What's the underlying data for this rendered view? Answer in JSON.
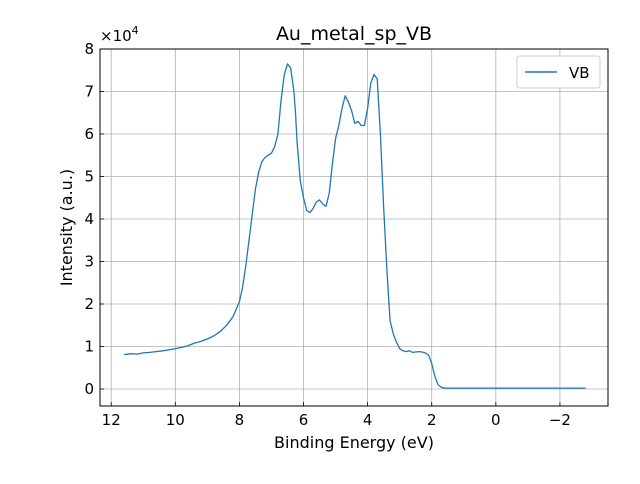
{
  "chart_data": {
    "type": "line",
    "title": "Au_metal_sp_VB",
    "xlabel": "Binding Energy (eV)",
    "ylabel": "Intensity (a.u.)",
    "y_multiplier_label": "×10",
    "y_multiplier_exponent": "4",
    "x_reversed": true,
    "xlim": [
      12.35,
      -3.5
    ],
    "ylim": [
      -0.4,
      8.0
    ],
    "x_ticks": [
      12,
      10,
      8,
      6,
      4,
      2,
      0,
      -2
    ],
    "x_tick_labels": [
      "12",
      "10",
      "8",
      "6",
      "4",
      "2",
      "0",
      "−2"
    ],
    "y_ticks": [
      0,
      1,
      2,
      3,
      4,
      5,
      6,
      7,
      8
    ],
    "y_tick_labels": [
      "0",
      "1",
      "2",
      "3",
      "4",
      "5",
      "6",
      "7",
      "8"
    ],
    "grid": true,
    "legend_position": "top-right",
    "colors": {
      "series": "#1f77b4",
      "grid": "#b0b0b0",
      "axes": "#000000"
    },
    "series": [
      {
        "name": "VB",
        "x": [
          11.6,
          11.4,
          11.2,
          11.0,
          10.8,
          10.6,
          10.4,
          10.2,
          10.0,
          9.8,
          9.6,
          9.4,
          9.2,
          9.0,
          8.8,
          8.6,
          8.4,
          8.2,
          8.0,
          7.9,
          7.8,
          7.7,
          7.6,
          7.5,
          7.4,
          7.3,
          7.2,
          7.1,
          7.0,
          6.9,
          6.8,
          6.7,
          6.6,
          6.5,
          6.4,
          6.3,
          6.25,
          6.2,
          6.1,
          6.0,
          5.9,
          5.8,
          5.7,
          5.6,
          5.5,
          5.4,
          5.3,
          5.2,
          5.1,
          5.0,
          4.9,
          4.8,
          4.7,
          4.6,
          4.5,
          4.4,
          4.3,
          4.2,
          4.1,
          4.0,
          3.9,
          3.8,
          3.7,
          3.6,
          3.5,
          3.4,
          3.3,
          3.2,
          3.1,
          3.0,
          2.9,
          2.8,
          2.7,
          2.65,
          2.6,
          2.5,
          2.4,
          2.3,
          2.2,
          2.1,
          2.0,
          1.9,
          1.8,
          1.7,
          1.6,
          1.5,
          1.4,
          1.2,
          1.0,
          0.8,
          0.6,
          0.4,
          0.2,
          0.1,
          0.0,
          -0.1,
          -0.2,
          -0.4,
          -1.0,
          -2.0,
          -2.8
        ],
        "y": [
          0.81,
          0.83,
          0.82,
          0.85,
          0.86,
          0.88,
          0.9,
          0.92,
          0.95,
          0.98,
          1.02,
          1.08,
          1.12,
          1.18,
          1.25,
          1.35,
          1.5,
          1.7,
          2.05,
          2.4,
          2.9,
          3.5,
          4.1,
          4.7,
          5.1,
          5.35,
          5.45,
          5.5,
          5.55,
          5.7,
          6.0,
          6.8,
          7.4,
          7.65,
          7.55,
          7.0,
          6.5,
          5.8,
          4.9,
          4.5,
          4.2,
          4.15,
          4.25,
          4.4,
          4.45,
          4.35,
          4.3,
          4.6,
          5.3,
          5.9,
          6.2,
          6.6,
          6.9,
          6.75,
          6.55,
          6.25,
          6.3,
          6.2,
          6.2,
          6.6,
          7.2,
          7.4,
          7.3,
          6.0,
          4.3,
          2.8,
          1.6,
          1.3,
          1.1,
          0.95,
          0.9,
          0.88,
          0.9,
          0.88,
          0.86,
          0.87,
          0.88,
          0.87,
          0.85,
          0.8,
          0.6,
          0.3,
          0.1,
          0.04,
          0.02,
          0.02,
          0.02,
          0.02,
          0.02,
          0.02,
          0.02,
          0.02,
          0.02,
          0.02,
          0.02,
          0.02,
          0.02,
          0.02,
          0.02,
          0.02,
          0.02
        ]
      }
    ]
  }
}
